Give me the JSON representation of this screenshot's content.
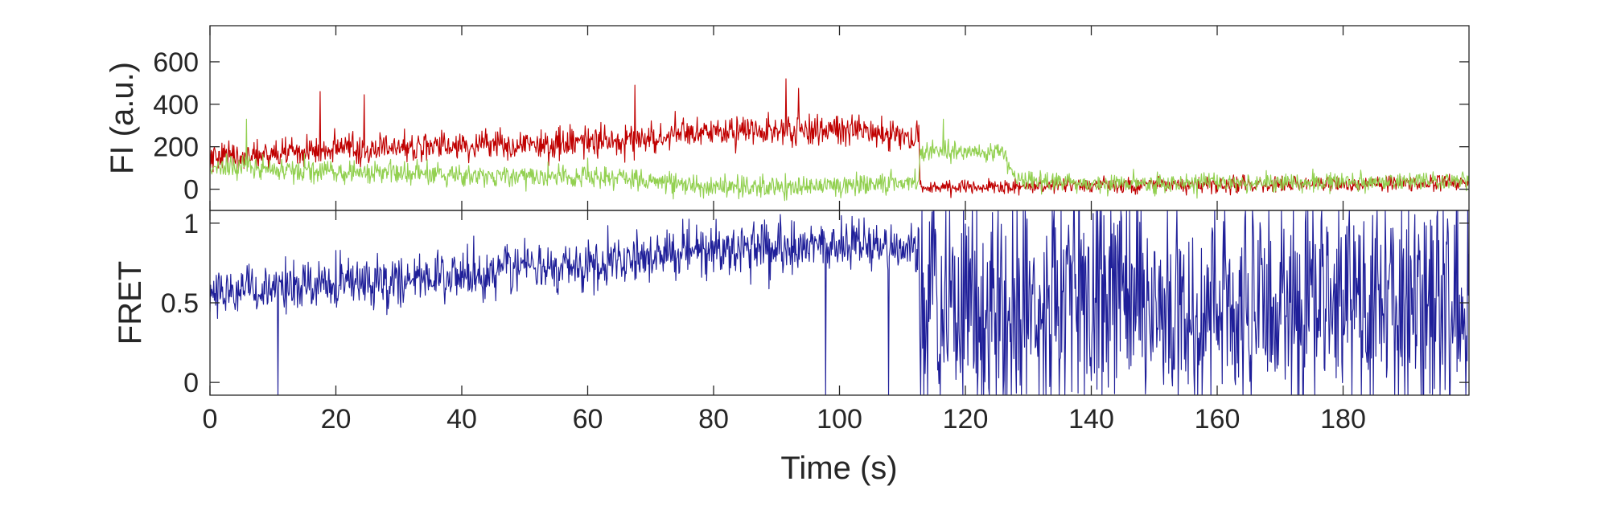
{
  "chart_data": [
    {
      "type": "line",
      "panel": "intensity",
      "ylabel": "FI (a.u.)",
      "xlabel": "",
      "xlim": [
        0,
        200
      ],
      "ylim": [
        -100,
        770
      ],
      "yticks": [
        0,
        200,
        400,
        600
      ],
      "ytick_labels": [
        "0",
        "200",
        "400",
        "600"
      ],
      "xticks": [
        0,
        20,
        40,
        60,
        80,
        100,
        120,
        140,
        160,
        180
      ],
      "grid": false,
      "legend": "none",
      "series": [
        {
          "color": "#c00000",
          "segments": [
            {
              "x": [
                0,
                20,
                40,
                60,
                64,
                80,
                100,
                112.6
              ],
              "mean": [
                150,
                185,
                210,
                220,
                225,
                270,
                280,
                240
              ],
              "noise": 60
            },
            {
              "x": [
                112.8,
                120,
                140,
                160,
                200
              ],
              "mean": [
                10,
                5,
                20,
                20,
                30
              ],
              "noise": 32
            }
          ]
        },
        {
          "color": "#92d050",
          "segments": [
            {
              "x": [
                0,
                20,
                40,
                60,
                64,
                80,
                100,
                112.6
              ],
              "mean": [
                110,
                85,
                70,
                60,
                55,
                10,
                15,
                40
              ],
              "noise": 45
            },
            {
              "x": [
                112.8,
                126,
                128,
                140,
                160,
                200
              ],
              "mean": [
                180,
                170,
                40,
                25,
                30,
                40
              ],
              "noise": 38
            }
          ]
        }
      ],
      "spikes": [
        {
          "series": 0,
          "x": 17.5,
          "y": 460
        },
        {
          "series": 0,
          "x": 24.5,
          "y": 445
        },
        {
          "series": 0,
          "x": 67.5,
          "y": 490
        },
        {
          "series": 0,
          "x": 91.5,
          "y": 520
        },
        {
          "series": 0,
          "x": 93.5,
          "y": 475
        },
        {
          "series": 1,
          "x": 5.8,
          "y": 330
        },
        {
          "series": 1,
          "x": 116.5,
          "y": 330
        }
      ]
    },
    {
      "type": "line",
      "panel": "fret",
      "ylabel": "FRET",
      "xlabel": "Time (s)",
      "xlim": [
        0,
        200
      ],
      "ylim": [
        -0.08,
        1.08
      ],
      "yticks": [
        0,
        0.5,
        1
      ],
      "ytick_labels": [
        "0",
        "0.5",
        "1"
      ],
      "xticks": [
        0,
        20,
        40,
        60,
        80,
        100,
        120,
        140,
        160,
        180
      ],
      "xtick_labels": [
        "0",
        "20",
        "40",
        "60",
        "80",
        "100",
        "120",
        "140",
        "160",
        "180"
      ],
      "grid": false,
      "legend": "none",
      "series": [
        {
          "color": "#1f1f99",
          "segments": [
            {
              "x": [
                0,
                20,
                40,
                60,
                80,
                100,
                110,
                112.6
              ],
              "mean": [
                0.55,
                0.62,
                0.68,
                0.75,
                0.84,
                0.86,
                0.85,
                0.82
              ],
              "noise": 0.13
            },
            {
              "x": [
                112.8,
                130,
                160,
                200
              ],
              "mean": [
                0.45,
                0.5,
                0.5,
                0.5
              ],
              "noise": 0.6
            }
          ]
        }
      ],
      "spikes": [
        {
          "series": 0,
          "x": 10.8,
          "y": -0.08
        },
        {
          "series": 0,
          "x": 97.8,
          "y": -0.08
        },
        {
          "series": 0,
          "x": 107.8,
          "y": -0.08
        }
      ]
    }
  ]
}
